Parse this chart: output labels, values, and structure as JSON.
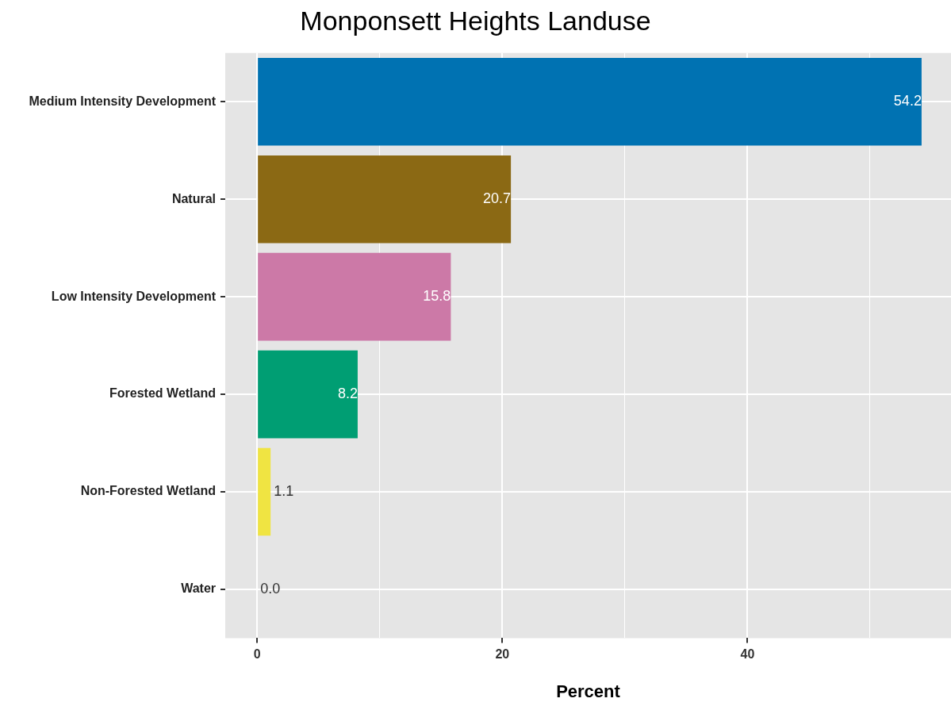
{
  "chart_data": {
    "type": "bar",
    "orientation": "horizontal",
    "title": "Monponsett Heights Landuse",
    "xlabel": "Percent",
    "categories": [
      "Medium Intensity Development",
      "Natural",
      "Low Intensity Development",
      "Forested Wetland",
      "Non-Forested Wetland",
      "Water"
    ],
    "values": [
      54.2,
      20.7,
      15.8,
      8.2,
      1.1,
      0.0
    ],
    "colors": [
      "#0072b2",
      "#8b6914",
      "#cc79a7",
      "#009e73",
      "#f0e442",
      "#999999"
    ],
    "value_labels": [
      "54.2",
      "20.7",
      "15.8",
      "8.2",
      "1.1",
      "0.0"
    ],
    "xlim": [
      -2.6,
      56.6
    ],
    "xticks": [
      0,
      {
        "value": 10,
        "label": null
      },
      20,
      {
        "value": 30,
        "label": null
      },
      40,
      {
        "value": 50,
        "label": null
      }
    ],
    "grid": true,
    "legend": false
  }
}
